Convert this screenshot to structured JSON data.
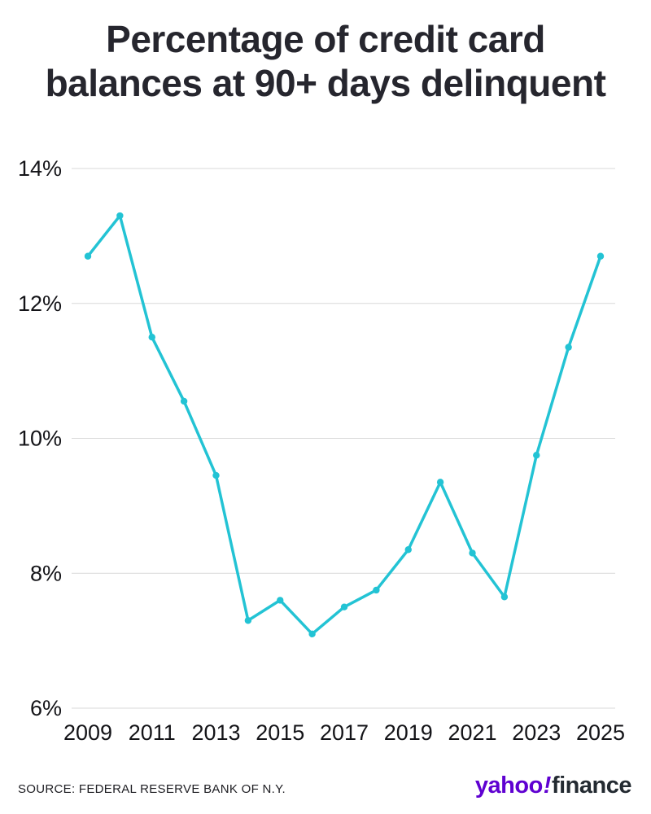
{
  "title": {
    "line1": "Percentage of credit card",
    "line2": "balances at 90+ days delinquent"
  },
  "footer": {
    "source": "SOURCE: FEDERAL RESERVE BANK OF N.Y.",
    "brand_yahoo": "yahoo",
    "brand_excl": "!",
    "brand_finance": "finance"
  },
  "chart_data": {
    "type": "line",
    "title": "Percentage of credit card balances at 90+ days delinquent",
    "x": [
      2009,
      2010,
      2011,
      2012,
      2013,
      2014,
      2015,
      2016,
      2017,
      2018,
      2019,
      2020,
      2021,
      2022,
      2023,
      2024,
      2025
    ],
    "values": [
      12.7,
      13.3,
      11.5,
      10.55,
      9.45,
      7.3,
      7.6,
      7.1,
      7.5,
      7.75,
      8.35,
      9.35,
      8.3,
      7.65,
      9.75,
      11.35,
      12.7
    ],
    "xlabel": "",
    "ylabel": "",
    "ylim": [
      6,
      14
    ],
    "yticks": [
      6,
      8,
      10,
      12,
      14
    ],
    "ytick_labels": [
      "6%",
      "8%",
      "10%",
      "12%",
      "14%"
    ],
    "xticks": [
      2009,
      2011,
      2013,
      2015,
      2017,
      2019,
      2021,
      2023,
      2025
    ],
    "grid": true,
    "legend": "none",
    "line_color": "#23c3d4",
    "grid_color": "#d9d9d9",
    "tick_color": "#141418",
    "marker": "circle",
    "source": "SOURCE: FEDERAL RESERVE BANK OF N.Y."
  }
}
